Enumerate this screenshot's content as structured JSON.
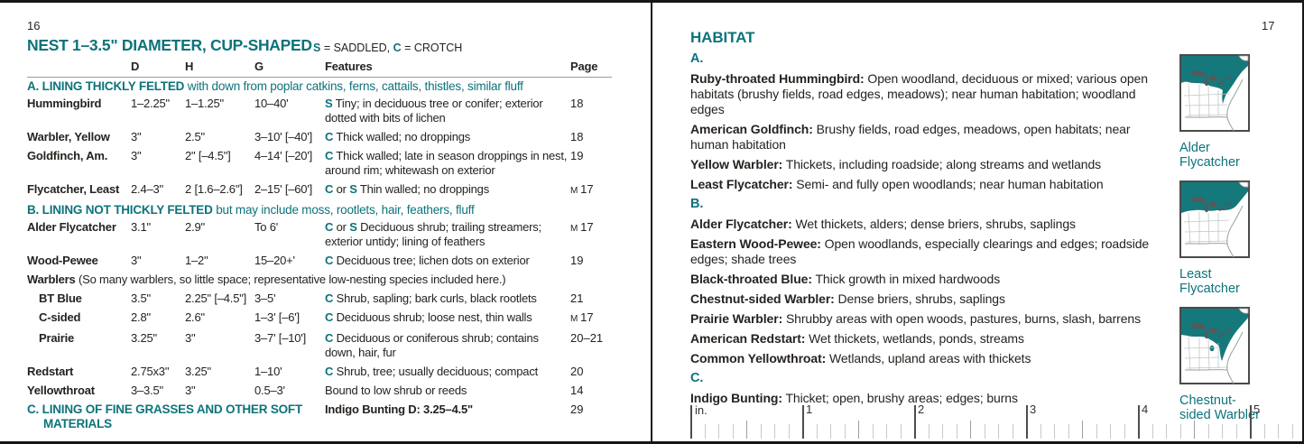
{
  "accent_teal": "#0c737b",
  "map_teal": "#15787a",
  "left_page": {
    "page_number": "16",
    "title": "NEST 1–3.5\" DIAMETER, CUP-SHAPED",
    "legend": {
      "s": "S",
      "s_rest": " = SADDLED, ",
      "c": "C",
      "c_rest": " = CROTCH"
    },
    "columns": {
      "d": "D",
      "h": "H",
      "g": "G",
      "features": "Features",
      "page": "Page"
    },
    "section_a": {
      "label": "A. LINING THICKLY FELTED",
      "cont": " with down from poplar catkins, ferns, cattails, thistles, similar fluff"
    },
    "section_b": {
      "label": "B. LINING NOT THICKLY FELTED",
      "cont": " but may include moss, rootlets, hair, feathers, fluff"
    },
    "warblers_note": {
      "name": "Warblers",
      "note": " (So many warblers, so little space; representative low-nesting species included here.)"
    },
    "section_c": {
      "label": "C. LINING OF FINE GRASSES AND OTHER SOFT MATERIALS",
      "feature_bold": "Indigo Bunting  D: 3.25–4.5\"",
      "page": "29"
    },
    "rows": [
      {
        "name": "Hummingbird",
        "d": "1–2.25\"",
        "h": "1–1.25\"",
        "g": "10–40'",
        "p1": "S",
        "text": " Tiny; in deciduous tree or conifer; exterior dotted with bits of lichen",
        "page": "18"
      },
      {
        "name": "Warbler, Yellow",
        "d": "3\"",
        "h": "2.5\"",
        "g": "3–10' [–40']",
        "p1": "C",
        "text": " Thick walled; no droppings",
        "page": "18"
      },
      {
        "name": "Goldfinch, Am.",
        "d": "3\"",
        "h": "2\" [–4.5\"]",
        "g": "4–14' [–20']",
        "p1": "C",
        "text": " Thick walled; late in season droppings in nest, around rim; whitewash on exterior",
        "page": "19"
      },
      {
        "name": "Flycatcher, Least",
        "d": "2.4–3\"",
        "h": "2 [1.6–2.6\"]",
        "g": "2–15' [–60']",
        "p1": "C",
        "mid": " or ",
        "p2": "S",
        "text": " Thin walled; no droppings",
        "page_m": "M ",
        "page": "17"
      },
      {
        "name": "Alder Flycatcher",
        "d": "3.1\"",
        "h": "2.9\"",
        "g": "To 6'",
        "p1": "C",
        "mid": " or ",
        "p2": "S",
        "text": " Deciduous shrub; trailing streamers; exterior untidy; lining of feathers",
        "page_m": "M ",
        "page": "17"
      },
      {
        "name": "Wood-Pewee",
        "d": "3\"",
        "h": "1–2\"",
        "g": "15–20+'",
        "p1": "C",
        "text": " Deciduous tree; lichen dots on exterior",
        "page": "19"
      },
      {
        "name": "BT Blue",
        "d": "3.5\"",
        "h": "2.25\" [–4.5\"]",
        "g": "3–5'",
        "p1": "C",
        "text": " Shrub, sapling; bark curls, black rootlets",
        "page": "21"
      },
      {
        "name": "C-sided",
        "d": "2.8\"",
        "h": "2.6\"",
        "g": "1–3' [–6']",
        "p1": "C",
        "text": " Deciduous shrub; loose nest, thin walls",
        "page_m": "M ",
        "page": "17"
      },
      {
        "name": "Prairie",
        "d": "3.25\"",
        "h": "3\"",
        "g": "3–7' [–10']",
        "p1": "C",
        "text": " Deciduous or coniferous shrub; contains down, hair, fur",
        "page": "20–21"
      },
      {
        "name": "Redstart",
        "d": "2.75x3\"",
        "h": "3.25\"",
        "g": "1–10'",
        "p1": "C",
        "text": " Shrub, tree; usually deciduous; compact",
        "page": "20"
      },
      {
        "name": "Yellowthroat",
        "d": "3–3.5\"",
        "h": "3\"",
        "g": "0.5–3'",
        "text": "Bound to low shrub or reeds",
        "page": "14"
      }
    ]
  },
  "right_page": {
    "page_number": "17",
    "title": "HABITAT",
    "groups": [
      {
        "label": "A.",
        "entries": [
          {
            "name": "Ruby-throated Hummingbird:",
            "text": " Open woodland, deciduous or mixed; various open habitats (brushy fields, road edges, meadows); near human habitation; woodland edges"
          },
          {
            "name": "American Goldfinch:",
            "text": " Brushy fields, road edges, meadows, open habitats; near human habitation"
          },
          {
            "name": "Yellow Warbler:",
            "text": " Thickets, including roadside; along streams and wetlands"
          },
          {
            "name": "Least Flycatcher:",
            "text": " Semi- and fully open woodlands; near human habitation"
          }
        ]
      },
      {
        "label": "B.",
        "entries": [
          {
            "name": "Alder Flycatcher:",
            "text": " Wet thickets, alders; dense briers, shrubs, saplings"
          },
          {
            "name": "Eastern Wood-Pewee:",
            "text": " Open woodlands, especially clearings and edges; roadside edges; shade trees"
          },
          {
            "name": "Black-throated Blue:",
            "text": " Thick growth in mixed hardwoods"
          },
          {
            "name": "Chestnut-sided Warbler:",
            "text": " Dense briers, shrubs, saplings"
          },
          {
            "name": "Prairie Warbler:",
            "text": " Shrubby areas with open woods, pastures, burns, slash, barrens"
          },
          {
            "name": "American Redstart:",
            "text": " Wet thickets, wetlands, ponds, streams"
          },
          {
            "name": "Common Yellowthroat:",
            "text": " Wetlands, upland areas with thickets"
          }
        ]
      },
      {
        "label": "C.",
        "entries": [
          {
            "name": "Indigo Bunting:",
            "text": " Thicket; open, brushy areas; edges; burns"
          }
        ]
      }
    ],
    "maps": [
      {
        "label_line1": "Alder",
        "label_line2": "Flycatcher"
      },
      {
        "label_line1": "Least",
        "label_line2": "Flycatcher"
      },
      {
        "label_line1": "Chestnut-",
        "label_line2": "sided Warbler"
      }
    ],
    "ruler": {
      "unit_label": "in.",
      "numbers": [
        "1",
        "2",
        "3",
        "4",
        "5"
      ]
    }
  }
}
